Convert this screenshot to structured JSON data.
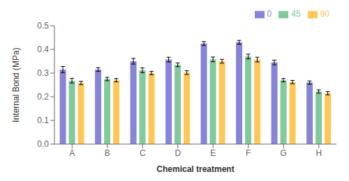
{
  "chart_data": {
    "type": "bar",
    "categories": [
      "A",
      "B",
      "C",
      "D",
      "E",
      "F",
      "G",
      "H"
    ],
    "xlabel": "Chemical treatment",
    "ylabel": "Internal Bond (MPa)",
    "series": [
      {
        "name": "0",
        "color": "#8884d8",
        "values": [
          0.315,
          0.315,
          0.35,
          0.357,
          0.425,
          0.43,
          0.345,
          0.26
        ],
        "errors": [
          0.013,
          0.008,
          0.012,
          0.01,
          0.008,
          0.008,
          0.01,
          0.007
        ]
      },
      {
        "name": "45",
        "color": "#82ca9d",
        "values": [
          0.268,
          0.275,
          0.312,
          0.335,
          0.358,
          0.37,
          0.27,
          0.222
        ],
        "errors": [
          0.01,
          0.007,
          0.01,
          0.008,
          0.01,
          0.01,
          0.007,
          0.007
        ]
      },
      {
        "name": "90",
        "color": "#ffc658",
        "values": [
          0.258,
          0.27,
          0.3,
          0.302,
          0.35,
          0.357,
          0.262,
          0.215
        ],
        "errors": [
          0.007,
          0.007,
          0.007,
          0.008,
          0.008,
          0.01,
          0.007,
          0.007
        ]
      }
    ],
    "ylim": [
      0.0,
      0.5
    ],
    "yticks": [
      {
        "value": 0.0,
        "label": "0.0"
      },
      0.1,
      0.2,
      0.3,
      0.4,
      0.5
    ],
    "legend": "upper right",
    "grid": false
  }
}
